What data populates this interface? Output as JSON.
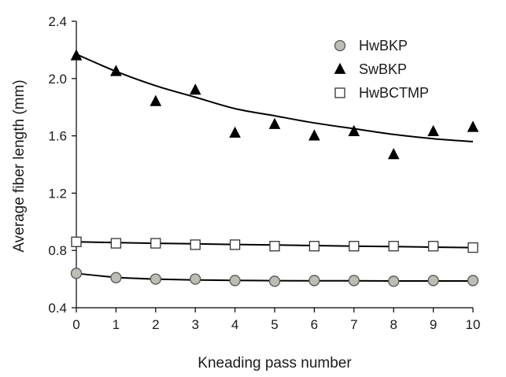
{
  "chart_data": {
    "type": "scatter",
    "xlabel": "Kneading pass number",
    "ylabel": "Average fiber length (mm)",
    "xlim": [
      0,
      10
    ],
    "ylim": [
      0.4,
      2.4
    ],
    "x_ticks": [
      "0",
      "1",
      "2",
      "3",
      "4",
      "5",
      "6",
      "7",
      "8",
      "9",
      "10"
    ],
    "y_ticks": [
      "0.4",
      "0.8",
      "1.2",
      "1.6",
      "2.0",
      "2.4"
    ],
    "grid": false,
    "legend_position": "top-right",
    "series": [
      {
        "name": "HwBKP",
        "marker": "circle",
        "marker_fill": "#bdbdb5",
        "marker_stroke": "#555555",
        "x": [
          0,
          1,
          2,
          3,
          4,
          5,
          6,
          7,
          8,
          9,
          10
        ],
        "values": [
          0.64,
          0.61,
          0.6,
          0.6,
          0.59,
          0.585,
          0.59,
          0.59,
          0.585,
          0.59,
          0.59
        ],
        "trend": [
          0.64,
          0.612,
          0.6,
          0.594,
          0.591,
          0.589,
          0.588,
          0.588,
          0.587,
          0.587,
          0.587
        ]
      },
      {
        "name": "SwBKP",
        "marker": "triangle",
        "marker_fill": "#000000",
        "marker_stroke": "#000000",
        "x": [
          0,
          1,
          2,
          3,
          4,
          5,
          6,
          7,
          8,
          9,
          10
        ],
        "values": [
          2.16,
          2.05,
          1.84,
          1.92,
          1.62,
          1.68,
          1.6,
          1.63,
          1.47,
          1.63,
          1.66
        ],
        "trend": [
          2.17,
          2.05,
          1.95,
          1.87,
          1.79,
          1.74,
          1.69,
          1.65,
          1.61,
          1.58,
          1.56
        ]
      },
      {
        "name": "HwBCTMP",
        "marker": "square",
        "marker_fill": "#ffffff",
        "marker_stroke": "#333333",
        "x": [
          0,
          1,
          2,
          3,
          4,
          5,
          6,
          7,
          8,
          9,
          10
        ],
        "values": [
          0.86,
          0.85,
          0.85,
          0.84,
          0.84,
          0.83,
          0.83,
          0.83,
          0.83,
          0.83,
          0.82
        ],
        "trend": [
          0.86,
          0.855,
          0.85,
          0.846,
          0.842,
          0.838,
          0.834,
          0.83,
          0.827,
          0.823,
          0.82
        ]
      }
    ]
  }
}
